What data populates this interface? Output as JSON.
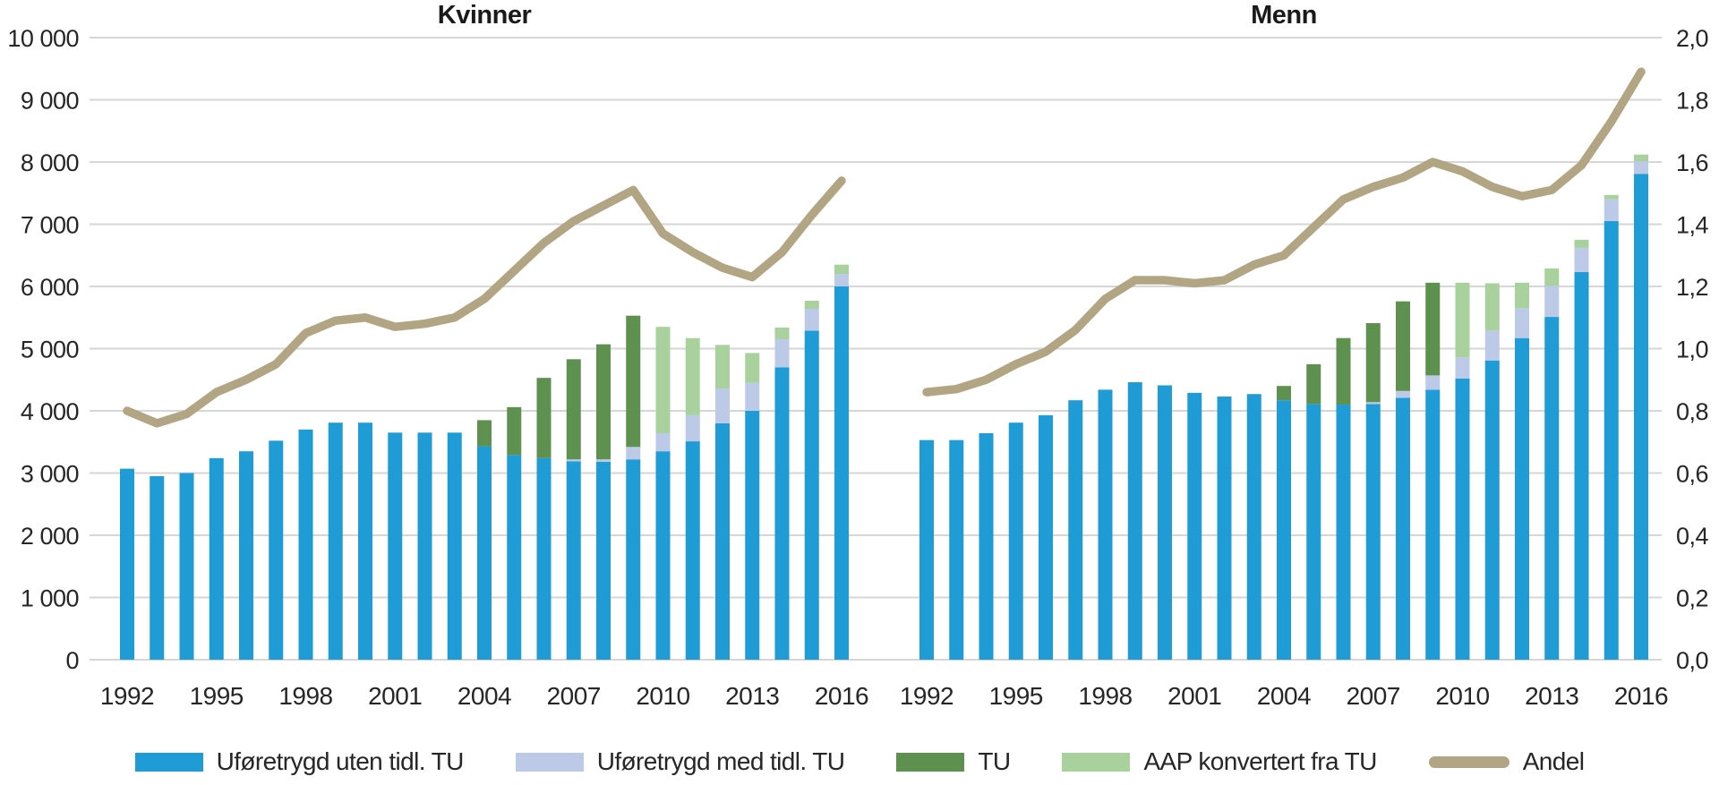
{
  "colors": {
    "ufore_uten_tu": "#1F9BD5",
    "ufore_med_tu": "#BCC9E7",
    "tu": "#5E9150",
    "aap": "#A8D19D",
    "andel_line": "#B2A584",
    "gridline": "#D6D6D6",
    "text": "#262626"
  },
  "legend": [
    {
      "label": "Uføretrygd uten tidl. TU",
      "color": "#1F9BD5",
      "type": "bar"
    },
    {
      "label": "Uføretrygd med tidl. TU",
      "color": "#BCC9E7",
      "type": "bar"
    },
    {
      "label": "TU",
      "color": "#5E9150",
      "type": "bar"
    },
    {
      "label": "AAP konvertert fra TU",
      "color": "#A8D19D",
      "type": "bar"
    },
    {
      "label": "Andel",
      "color": "#B2A584",
      "type": "line"
    }
  ],
  "left_axis_ticks": [
    "10 000",
    "9 000",
    "8 000",
    "7 000",
    "6 000",
    "5 000",
    "4 000",
    "3 000",
    "2 000",
    "1 000",
    "0"
  ],
  "right_axis_ticks": [
    "2,0",
    "1,8",
    "1,6",
    "1,4",
    "1,2",
    "1,0",
    "0,8",
    "0,6",
    "0,4",
    "0,2",
    "0,0"
  ],
  "chart_data": [
    {
      "type": "bar+line",
      "title": "Kvinner",
      "x": [
        1992,
        1993,
        1994,
        1995,
        1996,
        1997,
        1998,
        1999,
        2000,
        2001,
        2002,
        2003,
        2004,
        2005,
        2006,
        2007,
        2008,
        2009,
        2010,
        2011,
        2012,
        2013,
        2014,
        2015,
        2016
      ],
      "x_tick_labels": [
        "1992",
        "1995",
        "1998",
        "2001",
        "2004",
        "2007",
        "2010",
        "2013",
        "2016"
      ],
      "left_axis_range": [
        0,
        10000
      ],
      "right_axis_range": [
        0,
        2.0
      ],
      "grid": true,
      "series": [
        {
          "name": "Uføretrygd uten tidl. TU",
          "color": "#1F9BD5",
          "values": [
            3070,
            2950,
            3000,
            3240,
            3350,
            3520,
            3700,
            3810,
            3810,
            3650,
            3650,
            3650,
            3430,
            3290,
            3240,
            3190,
            3180,
            3220,
            3350,
            3510,
            3800,
            4000,
            4700,
            5290,
            6000
          ]
        },
        {
          "name": "Uføretrygd med tidl. TU",
          "color": "#BCC9E7",
          "values": [
            0,
            0,
            0,
            0,
            0,
            0,
            0,
            0,
            0,
            0,
            0,
            0,
            0,
            0,
            0,
            30,
            40,
            200,
            290,
            420,
            560,
            450,
            450,
            350,
            200
          ]
        },
        {
          "name": "TU",
          "color": "#5E9150",
          "values": [
            0,
            0,
            0,
            0,
            0,
            0,
            0,
            0,
            0,
            0,
            0,
            0,
            420,
            770,
            1290,
            1610,
            1850,
            2110,
            0,
            0,
            0,
            0,
            0,
            0,
            0
          ]
        },
        {
          "name": "AAP konvertert fra TU",
          "color": "#A8D19D",
          "values": [
            0,
            0,
            0,
            0,
            0,
            0,
            0,
            0,
            0,
            0,
            0,
            0,
            0,
            0,
            0,
            0,
            0,
            0,
            1710,
            1240,
            700,
            480,
            190,
            130,
            150
          ]
        }
      ],
      "line_series": {
        "name": "Andel",
        "axis": "right",
        "color": "#B2A584",
        "values": [
          0.8,
          0.76,
          0.79,
          0.86,
          0.9,
          0.95,
          1.05,
          1.09,
          1.1,
          1.07,
          1.08,
          1.1,
          1.16,
          1.25,
          1.34,
          1.41,
          1.46,
          1.51,
          1.37,
          1.31,
          1.26,
          1.23,
          1.31,
          1.43,
          1.54
        ]
      }
    },
    {
      "type": "bar+line",
      "title": "Menn",
      "x": [
        1992,
        1993,
        1994,
        1995,
        1996,
        1997,
        1998,
        1999,
        2000,
        2001,
        2002,
        2003,
        2004,
        2005,
        2006,
        2007,
        2008,
        2009,
        2010,
        2011,
        2012,
        2013,
        2014,
        2015,
        2016
      ],
      "x_tick_labels": [
        "1992",
        "1995",
        "1998",
        "2001",
        "2004",
        "2007",
        "2010",
        "2013",
        "2016"
      ],
      "left_axis_range": [
        0,
        10000
      ],
      "right_axis_range": [
        0,
        2.0
      ],
      "grid": true,
      "series": [
        {
          "name": "Uføretrygd uten tidl. TU",
          "color": "#1F9BD5",
          "values": [
            3530,
            3530,
            3640,
            3810,
            3930,
            4170,
            4340,
            4460,
            4410,
            4290,
            4230,
            4270,
            4170,
            4110,
            4100,
            4110,
            4210,
            4340,
            4520,
            4810,
            5170,
            5510,
            6230,
            7050,
            7810
          ]
        },
        {
          "name": "Uføretrygd med tidl. TU",
          "color": "#BCC9E7",
          "values": [
            0,
            0,
            0,
            0,
            0,
            0,
            0,
            0,
            0,
            0,
            0,
            0,
            0,
            0,
            0,
            30,
            110,
            230,
            340,
            480,
            480,
            500,
            390,
            350,
            200
          ]
        },
        {
          "name": "TU",
          "color": "#5E9150",
          "values": [
            0,
            0,
            0,
            0,
            0,
            0,
            0,
            0,
            0,
            0,
            0,
            0,
            230,
            640,
            1070,
            1270,
            1440,
            1490,
            0,
            0,
            0,
            0,
            0,
            0,
            0
          ]
        },
        {
          "name": "AAP konvertert fra TU",
          "color": "#A8D19D",
          "values": [
            0,
            0,
            0,
            0,
            0,
            0,
            0,
            0,
            0,
            0,
            0,
            0,
            0,
            0,
            0,
            0,
            0,
            0,
            1200,
            760,
            410,
            280,
            130,
            70,
            110
          ]
        }
      ],
      "line_series": {
        "name": "Andel",
        "axis": "right",
        "color": "#B2A584",
        "values": [
          0.86,
          0.87,
          0.9,
          0.95,
          0.99,
          1.06,
          1.16,
          1.22,
          1.22,
          1.21,
          1.22,
          1.27,
          1.3,
          1.39,
          1.48,
          1.52,
          1.55,
          1.6,
          1.57,
          1.52,
          1.49,
          1.51,
          1.59,
          1.73,
          1.89
        ]
      }
    }
  ]
}
